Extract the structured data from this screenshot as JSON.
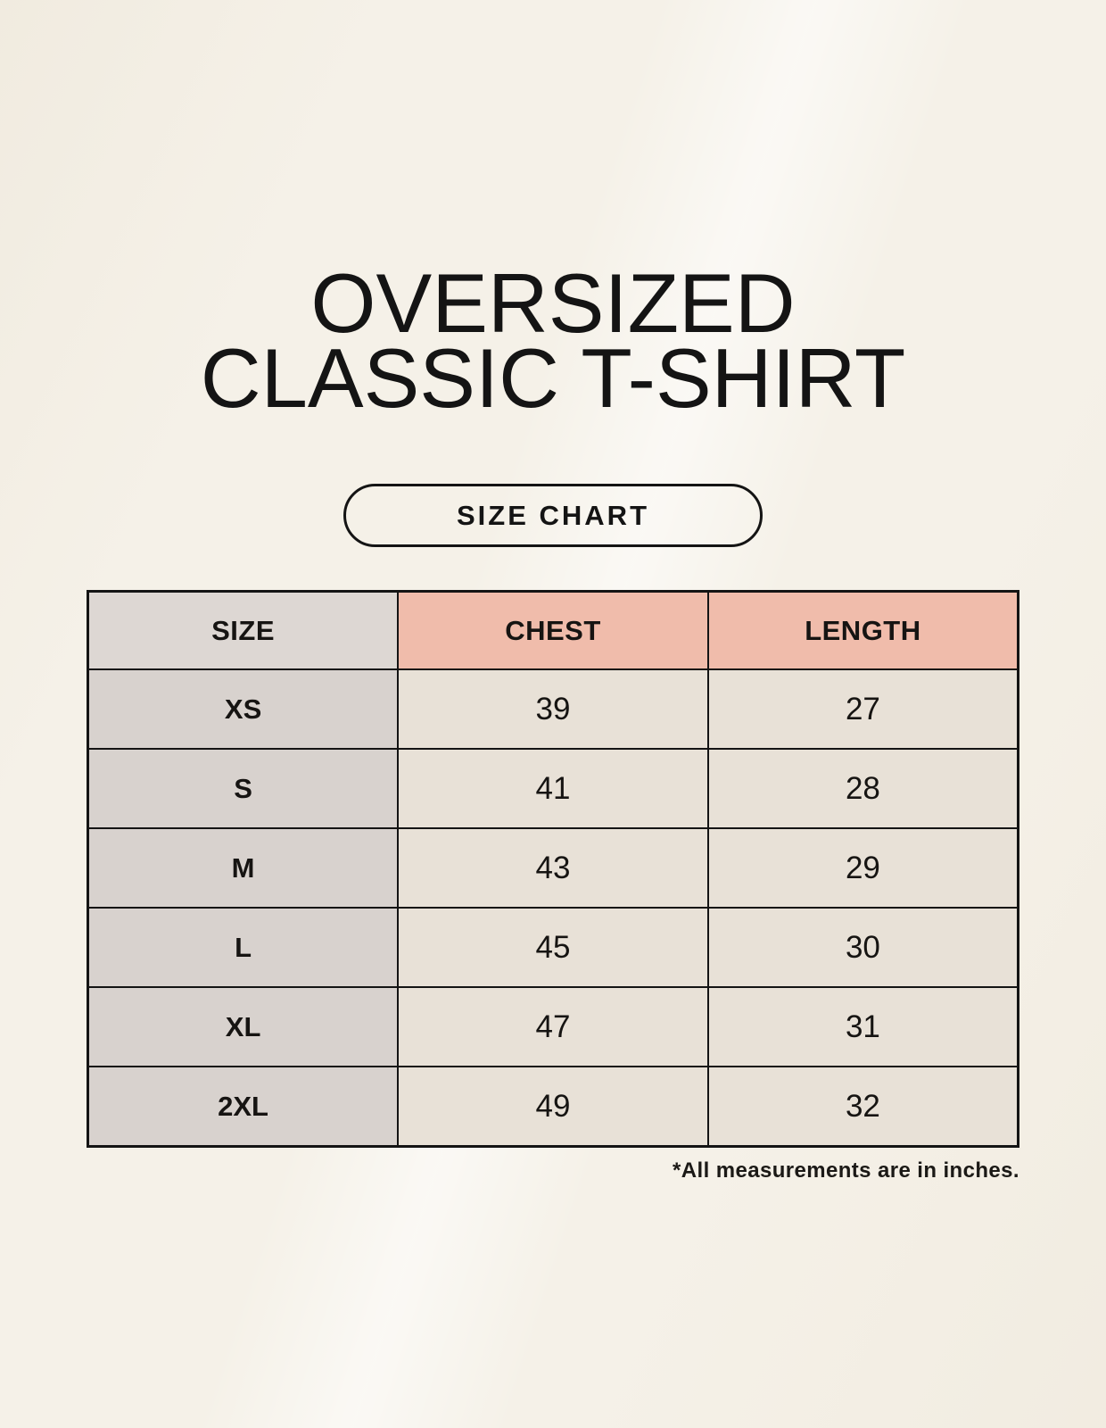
{
  "page": {
    "title_line1": "OVERSIZED",
    "title_line2": "CLASSIC T-SHIRT",
    "badge_label": "SIZE CHART",
    "footnote": "*All measurements are in inches."
  },
  "colors": {
    "page_bg": "#f5f1e8",
    "header_size_gray": "#ddd7d3",
    "header_pink": "#f0bcab",
    "row_label_gray": "#d8d2ce",
    "cell_cream": "#e8e1d7",
    "border": "#141414",
    "text": "#141414"
  },
  "chart_data": {
    "type": "table",
    "title": "OVERSIZED CLASSIC T-SHIRT",
    "subtitle": "SIZE CHART",
    "units": "inches",
    "columns": [
      "SIZE",
      "CHEST",
      "LENGTH"
    ],
    "rows": [
      {
        "size": "XS",
        "chest": 39,
        "length": 27
      },
      {
        "size": "S",
        "chest": 41,
        "length": 28
      },
      {
        "size": "M",
        "chest": 43,
        "length": 29
      },
      {
        "size": "L",
        "chest": 45,
        "length": 30
      },
      {
        "size": "XL",
        "chest": 47,
        "length": 31
      },
      {
        "size": "2XL",
        "chest": 49,
        "length": 32
      }
    ],
    "note": "*All measurements are in inches."
  }
}
